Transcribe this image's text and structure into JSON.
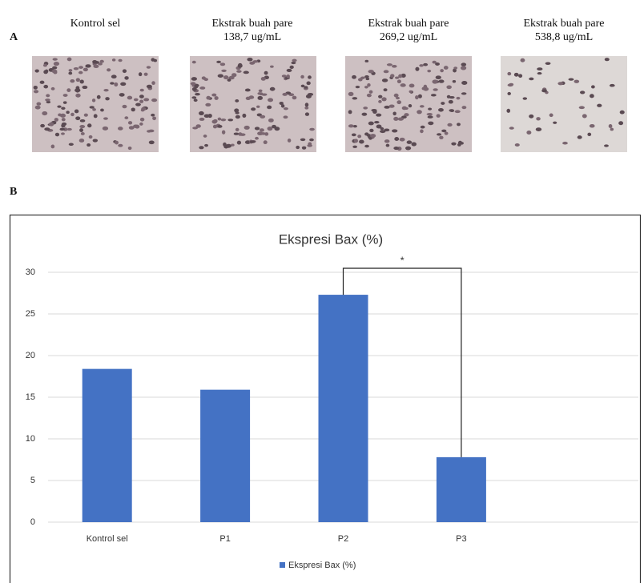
{
  "panel_a": {
    "label": "A",
    "captions": [
      [
        "Kontrol sel"
      ],
      [
        "Ekstrak buah pare",
        "138,7 ug/mL"
      ],
      [
        "Ekstrak buah pare",
        "269,2 ug/mL"
      ],
      [
        "Ekstrak buah pare",
        "538,8 ug/mL"
      ]
    ]
  },
  "panel_b": {
    "label": "B"
  },
  "chart_data": {
    "type": "bar",
    "title": "Ekspresi Bax (%)",
    "categories": [
      "Kontrol sel",
      "P1",
      "P2",
      "P3"
    ],
    "series": [
      {
        "name": "Ekspresi Bax (%)",
        "color": "#4472c4",
        "values": [
          18.4,
          15.9,
          27.3,
          7.8
        ]
      }
    ],
    "ylim": [
      0,
      30
    ],
    "yticks": [
      0,
      5,
      10,
      15,
      20,
      25,
      30
    ],
    "grid": true,
    "annotation": "*",
    "legend": "bottom"
  }
}
